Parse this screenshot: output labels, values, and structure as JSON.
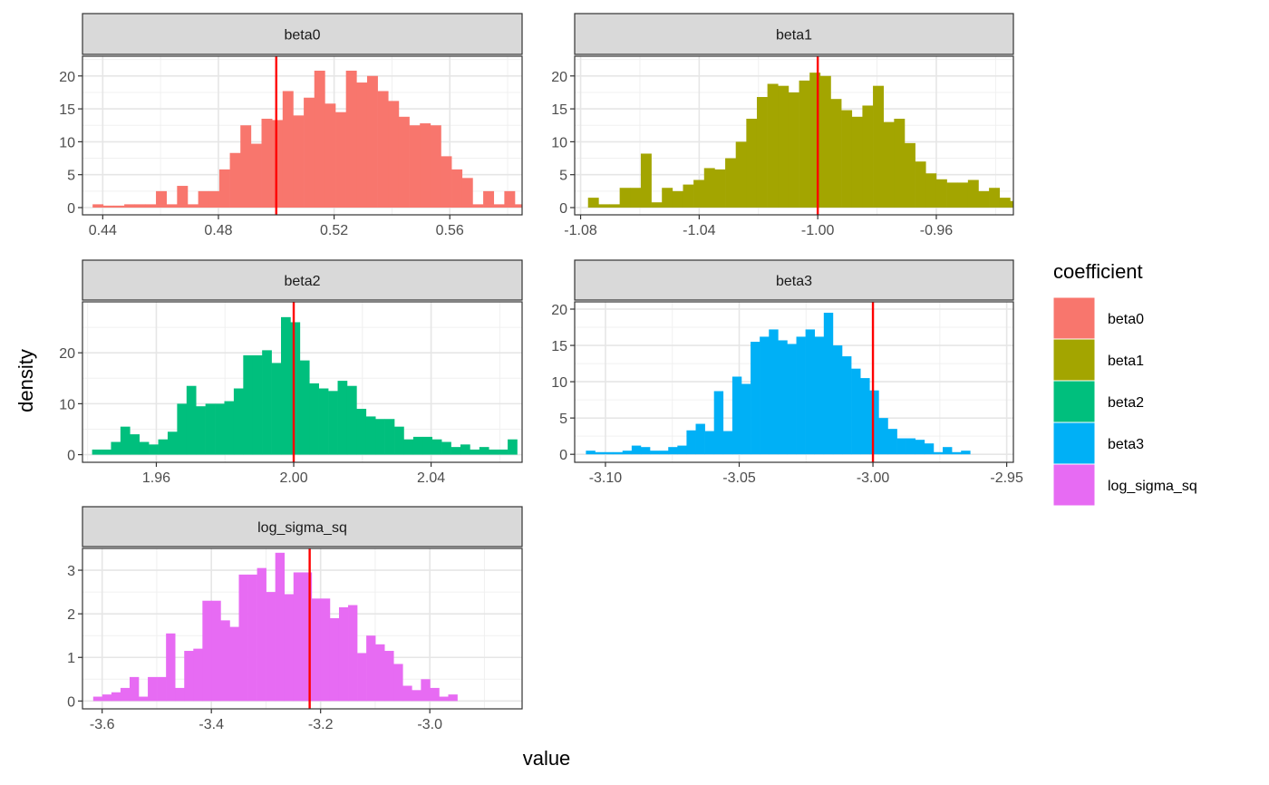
{
  "axes": {
    "xlabel": "value",
    "ylabel": "density"
  },
  "legend": {
    "title": "coefficient",
    "placement": "right",
    "items": [
      {
        "label": "beta0",
        "color": "#F8766D"
      },
      {
        "label": "beta1",
        "color": "#A3A500"
      },
      {
        "label": "beta2",
        "color": "#00BF7D"
      },
      {
        "label": "beta3",
        "color": "#00B0F6"
      },
      {
        "label": "log_sigma_sq",
        "color": "#E76BF3"
      }
    ]
  },
  "true_value_line_color": "#FF0000",
  "chart_data": [
    {
      "type": "bar",
      "facet": "beta0",
      "color": "#F8766D",
      "bin_width": 0.00365,
      "x_start": 0.4365,
      "true_value": 0.5,
      "xlim": [
        0.433,
        0.585
      ],
      "ylim": [
        -1.1,
        23
      ],
      "xticks": [
        0.44,
        0.48,
        0.52,
        0.56
      ],
      "xtick_labels": [
        "0.44",
        "0.48",
        "0.52",
        "0.56"
      ],
      "yticks": [
        0,
        5,
        10,
        15,
        20
      ],
      "ytick_labels": [
        "0",
        "5",
        "10",
        "15",
        "20"
      ],
      "values": [
        0.5,
        0.3,
        0.3,
        0.5,
        0.5,
        0.5,
        2.5,
        0.5,
        3.3,
        0.5,
        2.5,
        2.5,
        5.8,
        8.3,
        12.5,
        9.7,
        13.5,
        13.3,
        17.7,
        14.0,
        16.7,
        20.8,
        15.8,
        14.5,
        20.8,
        19.0,
        20.0,
        17.7,
        16.2,
        13.8,
        12.5,
        12.8,
        12.5,
        7.8,
        5.8,
        4.5,
        0.5,
        2.5,
        0.5,
        2.5,
        0.5,
        0.3,
        0.5,
        0.5,
        0.5
      ]
    },
    {
      "type": "bar",
      "facet": "beta1",
      "color": "#A3A500",
      "bin_width": 0.00356,
      "x_start": -1.0775,
      "true_value": -1.0,
      "xlim": [
        -1.082,
        -0.934
      ],
      "ylim": [
        -1.1,
        23
      ],
      "xticks": [
        -1.08,
        -1.04,
        -1.0,
        -0.96
      ],
      "xtick_labels": [
        "-1.08",
        "-1.04",
        "-1.00",
        "-0.96"
      ],
      "yticks": [
        0,
        5,
        10,
        15,
        20
      ],
      "ytick_labels": [
        "0",
        "5",
        "10",
        "15",
        "20"
      ],
      "values": [
        1.5,
        0.5,
        0.5,
        3.0,
        3.0,
        8.2,
        0.8,
        3.0,
        2.5,
        3.5,
        4.2,
        6.0,
        5.8,
        7.5,
        10.0,
        13.5,
        16.8,
        18.8,
        18.5,
        17.5,
        19.3,
        20.5,
        20.0,
        16.5,
        14.8,
        13.8,
        15.5,
        18.5,
        13.0,
        13.5,
        9.8,
        7.0,
        5.2,
        4.3,
        3.8,
        3.8,
        4.2,
        2.5,
        3.0,
        1.5,
        1.0,
        1.0,
        0.8,
        0.5,
        0.5
      ]
    },
    {
      "type": "bar",
      "facet": "beta2",
      "color": "#00BF7D",
      "bin_width": 0.00275,
      "x_start": 1.9413,
      "true_value": 2.0,
      "xlim": [
        1.9385,
        2.0665
      ],
      "ylim": [
        -1.5,
        30
      ],
      "xticks": [
        1.96,
        2.0,
        2.04
      ],
      "xtick_labels": [
        "1.96",
        "2.00",
        "2.04"
      ],
      "yticks": [
        0,
        10,
        20
      ],
      "ytick_labels": [
        "0",
        "10",
        "20"
      ],
      "values": [
        1.0,
        1.0,
        2.5,
        5.5,
        4.0,
        2.5,
        2.0,
        3.0,
        4.5,
        10.0,
        13.5,
        9.5,
        10.0,
        10.0,
        10.5,
        13.0,
        19.5,
        19.5,
        20.5,
        18.0,
        27.0,
        26.0,
        18.5,
        14.0,
        13.0,
        12.5,
        14.5,
        13.5,
        9.0,
        7.5,
        7.0,
        7.0,
        5.5,
        3.0,
        3.5,
        3.5,
        3.0,
        2.5,
        1.5,
        2.0,
        1.0,
        1.5,
        1.0,
        1.0,
        3.0
      ]
    },
    {
      "type": "bar",
      "facet": "beta3",
      "color": "#00B0F6",
      "bin_width": 0.00342,
      "x_start": -3.1073,
      "true_value": -3.0,
      "xlim": [
        -3.1115,
        -2.9475
      ],
      "ylim": [
        -1.1,
        21
      ],
      "xticks": [
        -3.1,
        -3.05,
        -3.0,
        -2.95
      ],
      "xtick_labels": [
        "-3.10",
        "-3.05",
        "-3.00",
        "-2.95"
      ],
      "yticks": [
        0,
        5,
        10,
        15,
        20
      ],
      "ytick_labels": [
        "0",
        "5",
        "10",
        "15",
        "20"
      ],
      "values": [
        0.5,
        0.3,
        0.3,
        0.3,
        0.5,
        1.2,
        1.0,
        0.5,
        0.5,
        1.0,
        1.2,
        3.3,
        4.2,
        3.2,
        8.7,
        3.2,
        10.7,
        9.7,
        15.5,
        16.2,
        17.2,
        15.7,
        15.2,
        16.2,
        17.2,
        16.2,
        19.5,
        15.0,
        13.5,
        11.8,
        10.5,
        8.8,
        5.0,
        3.5,
        2.2,
        2.2,
        2.0,
        1.5,
        0.3,
        1.0,
        0.3,
        0.5
      ]
    },
    {
      "type": "bar",
      "facet": "log_sigma_sq",
      "color": "#E76BF3",
      "bin_width": 0.01667,
      "x_start": -3.6164,
      "true_value": -3.22,
      "xlim": [
        -3.636,
        -2.831
      ],
      "ylim": [
        -0.18,
        3.5
      ],
      "xticks": [
        -3.6,
        -3.4,
        -3.2,
        -3.0
      ],
      "xtick_labels": [
        "-3.6",
        "-3.4",
        "-3.2",
        "-3.0"
      ],
      "yticks": [
        0,
        1,
        2,
        3
      ],
      "ytick_labels": [
        "0",
        "1",
        "2",
        "3"
      ],
      "values": [
        0.1,
        0.15,
        0.2,
        0.3,
        0.55,
        0.1,
        0.55,
        0.55,
        1.55,
        0.3,
        1.15,
        1.2,
        2.3,
        2.3,
        1.85,
        1.7,
        2.9,
        2.9,
        3.05,
        2.5,
        3.4,
        2.45,
        2.95,
        2.95,
        2.35,
        2.35,
        1.9,
        2.15,
        2.2,
        1.1,
        1.5,
        1.3,
        1.15,
        0.85,
        0.35,
        0.25,
        0.5,
        0.3,
        0.1,
        0.15
      ]
    }
  ]
}
